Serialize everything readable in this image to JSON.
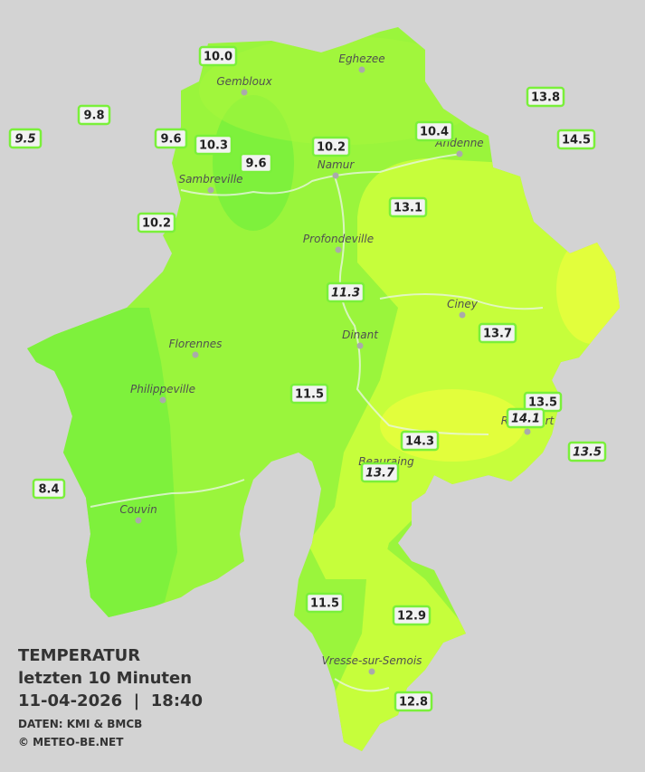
{
  "title": "TEMPERATUR",
  "subtitle": "letzten 10 Minuten",
  "datetime": "11-04-2026  |  18:40",
  "source": "DATEN: KMI & BMCB",
  "copyright": "© METEO-BE.NET",
  "cities": [
    "Eghezee",
    "Gembloux",
    "Andenne",
    "Namur",
    "Sambreville",
    "Profondeville",
    "Ciney",
    "Dinant",
    "Florennes",
    "Philippeville",
    "Rochefort",
    "Beauraing",
    "Couvin",
    "Vresse-sur-Semois"
  ],
  "stations": [
    {
      "label": "10.0",
      "style": "normal"
    },
    {
      "label": "9.8",
      "style": "normal"
    },
    {
      "label": "9.5",
      "style": "italic"
    },
    {
      "label": "9.6",
      "style": "normal"
    },
    {
      "label": "10.3",
      "style": "normal"
    },
    {
      "label": "9.6",
      "style": "normal"
    },
    {
      "label": "10.2",
      "style": "normal"
    },
    {
      "label": "10.4",
      "style": "normal"
    },
    {
      "label": "13.8",
      "style": "normal"
    },
    {
      "label": "14.5",
      "style": "normal"
    },
    {
      "label": "10.2",
      "style": "normal"
    },
    {
      "label": "13.1",
      "style": "normal"
    },
    {
      "label": "11.3",
      "style": "italic"
    },
    {
      "label": "13.7",
      "style": "normal"
    },
    {
      "label": "11.5",
      "style": "normal"
    },
    {
      "label": "13.5",
      "style": "normal"
    },
    {
      "label": "14.1",
      "style": "italic"
    },
    {
      "label": "14.3",
      "style": "normal"
    },
    {
      "label": "13.5",
      "style": "italic"
    },
    {
      "label": "13.7",
      "style": "italic"
    },
    {
      "label": "8.4",
      "style": "normal"
    },
    {
      "label": "11.5",
      "style": "normal"
    },
    {
      "label": "12.9",
      "style": "normal"
    },
    {
      "label": "12.8",
      "style": "normal"
    }
  ]
}
